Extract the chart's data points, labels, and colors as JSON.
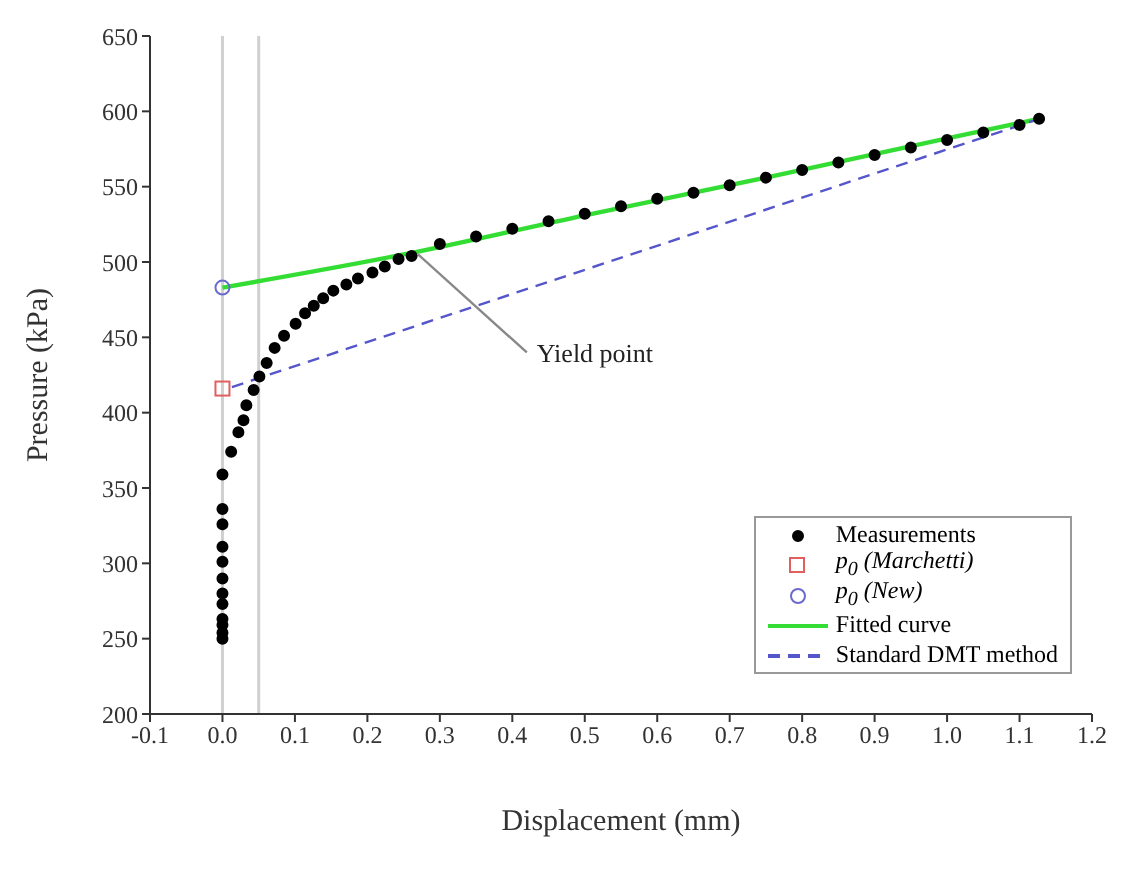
{
  "chart_data": {
    "type": "scatter",
    "xlabel": "Displacement (mm)",
    "ylabel": "Pressure (kPa)",
    "xlim": [
      -0.1,
      1.2
    ],
    "xticks": [
      -0.1,
      {
        "value": 0,
        "label": "0.0"
      },
      0.1,
      0.2,
      0.3,
      0.4,
      0.5,
      0.6,
      0.7,
      0.8,
      0.9,
      {
        "value": 1,
        "label": "1.0"
      },
      1.1,
      1.2
    ],
    "ylim": [
      200,
      650
    ],
    "yticks": [
      200,
      250,
      300,
      350,
      400,
      450,
      500,
      550,
      600,
      650
    ],
    "grid": false,
    "legend": "bottom right",
    "series": [
      {
        "name": "Measurements",
        "marker": "circle",
        "color": "#000000",
        "x": [
          0,
          0,
          0,
          0,
          0,
          0,
          0,
          0,
          0,
          0,
          0,
          0,
          0.012,
          0.022,
          0.029,
          0.033,
          0.043,
          0.051,
          0.061,
          0.072,
          0.085,
          0.101,
          0.114,
          0.126,
          0.139,
          0.153,
          0.171,
          0.187,
          0.207,
          0.224,
          0.243,
          0.261,
          0.3,
          0.35,
          0.4,
          0.45,
          0.5,
          0.55,
          0.6,
          0.65,
          0.7,
          0.75,
          0.8,
          0.85,
          0.9,
          0.95,
          1.0,
          1.05,
          1.1,
          1.127
        ],
        "values": [
          250,
          254,
          259,
          263,
          273,
          280,
          290,
          301,
          311,
          326,
          336,
          359,
          374,
          387,
          395,
          405,
          415,
          424,
          433,
          443,
          451,
          459,
          466,
          471,
          476,
          481,
          485,
          489,
          493,
          497,
          502,
          504,
          512,
          517,
          522,
          527,
          532,
          537,
          542,
          546,
          551,
          556,
          561,
          566,
          571,
          576,
          581,
          586,
          591,
          595
        ]
      },
      {
        "name": "p$_{0}$ (Marchetti)",
        "marker": "square",
        "color": "#e06060",
        "x": [
          0
        ],
        "values": [
          416
        ]
      },
      {
        "name": "p$_{0}$ (New)",
        "marker": "circle",
        "color": "#6a6ad0",
        "x": [
          0
        ],
        "values": [
          483
        ]
      },
      {
        "name": "Fitted curve",
        "type": "line",
        "marker": "none",
        "line_style": "solid",
        "color": "#33dd33",
        "x": [
          0,
          0.25,
          0.5,
          0.75,
          1.0,
          1.127
        ],
        "values": [
          483,
          505,
          531,
          556,
          582,
          595
        ]
      },
      {
        "name": "Standard DMT method",
        "type": "line",
        "marker": "none",
        "line_style": "dashed",
        "color": "#5555cc",
        "x": [
          0.013,
          1.127
        ],
        "values": [
          417,
          595
        ]
      }
    ],
    "ref_lines": [
      {
        "axis": "x",
        "value": 0,
        "color": "#d0d0d0"
      },
      {
        "axis": "x",
        "value": 0.05,
        "color": "#d0d0d0"
      }
    ],
    "annotations": [
      {
        "text": "Yield point",
        "x": 0.27,
        "y": 505
      }
    ]
  }
}
